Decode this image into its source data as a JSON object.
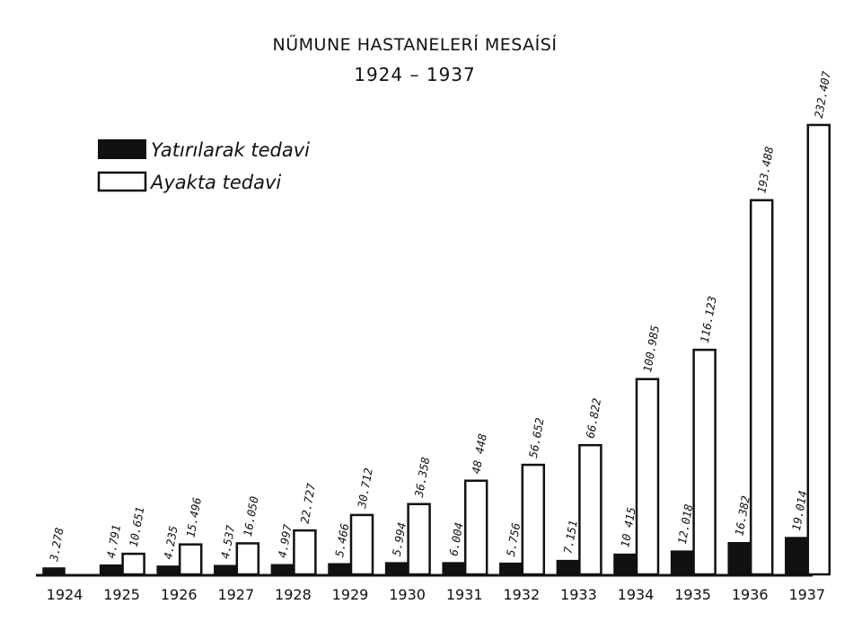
{
  "chart_data": {
    "type": "bar",
    "title": "NŰMUNE HASTANELERÍ MESAÍSÍ",
    "subtitle": "1924 – 1937",
    "xlabel": "",
    "ylabel": "",
    "categories": [
      "1924",
      "1925",
      "1926",
      "1927",
      "1928",
      "1929",
      "1930",
      "1931",
      "1932",
      "1933",
      "1934",
      "1935",
      "1936",
      "1937"
    ],
    "series": [
      {
        "name": "Yatırılarak tedavi",
        "color": "#111111",
        "values": [
          3278,
          4791,
          4235,
          4537,
          4997,
          5466,
          5994,
          6004,
          5756,
          7151,
          10415,
          12018,
          16382,
          19014
        ],
        "labels": [
          "3.278",
          "4.791",
          "4.235",
          "4.537",
          "4.997",
          "5.466",
          "5.994",
          "6.004",
          "5.756",
          "7.151",
          "10 415",
          "12.018",
          "16.382",
          "19.014"
        ]
      },
      {
        "name": "Ayakta tedavi",
        "color": "#ffffff",
        "values": [
          null,
          10651,
          15496,
          16050,
          22727,
          30712,
          36358,
          48448,
          56652,
          66822,
          100985,
          116123,
          193488,
          232407
        ],
        "labels": [
          null,
          "10.651",
          "15.496",
          "16.050",
          "22.727",
          "30.712",
          "36.358",
          "48 448",
          "56.652",
          "66.822",
          "100.985",
          "116.123",
          "193.488",
          "232.407"
        ]
      }
    ],
    "ylim": [
      0,
      232407
    ],
    "grid": false,
    "legend_position": "top-left"
  }
}
